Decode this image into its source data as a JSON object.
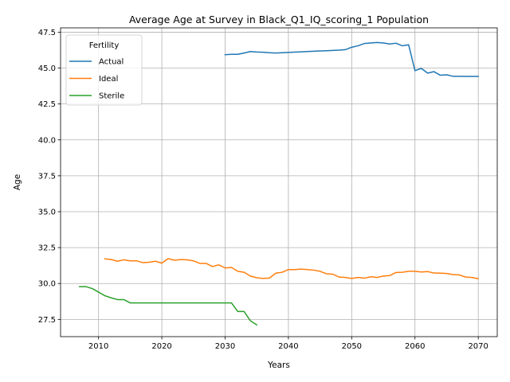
{
  "chart_data": {
    "type": "line",
    "title": "Average Age at Survey in Black_Q1_IQ_scoring_1 Population",
    "xlabel": "Years",
    "ylabel": "Age",
    "xlim": [
      2004,
      2073
    ],
    "ylim": [
      26.3,
      47.8
    ],
    "xticks": [
      2010,
      2020,
      2030,
      2040,
      2050,
      2060,
      2070
    ],
    "yticks": [
      27.5,
      30.0,
      32.5,
      35.0,
      37.5,
      40.0,
      42.5,
      45.0,
      47.5
    ],
    "xtick_labels": [
      "2010",
      "2020",
      "2030",
      "2040",
      "2050",
      "2060",
      "2070"
    ],
    "ytick_labels": [
      "27.5",
      "30.0",
      "32.5",
      "35.0",
      "37.5",
      "40.0",
      "42.5",
      "45.0",
      "47.5"
    ],
    "grid": true,
    "legend": {
      "title": "Fertility",
      "position": "upper-left"
    },
    "series": [
      {
        "name": "Actual",
        "color": "#1f77b4",
        "x": [
          2030,
          2031,
          2032,
          2033,
          2034,
          2035,
          2036,
          2037,
          2038,
          2039,
          2040,
          2041,
          2042,
          2043,
          2044,
          2045,
          2046,
          2047,
          2048,
          2049,
          2050,
          2051,
          2052,
          2053,
          2054,
          2055,
          2056,
          2057,
          2058,
          2059,
          2060,
          2061,
          2062,
          2063,
          2064,
          2065,
          2066,
          2067,
          2068,
          2069,
          2070
        ],
        "y": [
          45.93,
          45.96,
          45.96,
          46.05,
          46.15,
          46.12,
          46.1,
          46.07,
          46.05,
          46.07,
          46.09,
          46.11,
          46.13,
          46.15,
          46.17,
          46.19,
          46.21,
          46.23,
          46.25,
          46.28,
          46.45,
          46.55,
          46.71,
          46.75,
          46.78,
          46.75,
          46.68,
          46.73,
          46.55,
          46.62,
          44.82,
          44.98,
          44.65,
          44.75,
          44.5,
          44.53,
          44.43,
          44.43,
          44.42,
          44.42,
          44.42
        ]
      },
      {
        "name": "Ideal",
        "color": "#ff7f0e",
        "x": [
          2011,
          2012,
          2013,
          2014,
          2015,
          2016,
          2017,
          2018,
          2019,
          2020,
          2021,
          2022,
          2023,
          2024,
          2025,
          2026,
          2027,
          2028,
          2029,
          2030,
          2031,
          2032,
          2033,
          2034,
          2035,
          2036,
          2037,
          2038,
          2039,
          2040,
          2041,
          2042,
          2043,
          2044,
          2045,
          2046,
          2047,
          2048,
          2049,
          2050,
          2051,
          2052,
          2053,
          2054,
          2055,
          2056,
          2057,
          2058,
          2059,
          2060,
          2061,
          2062,
          2063,
          2064,
          2065,
          2066,
          2067,
          2068,
          2069,
          2070
        ],
        "y": [
          31.72,
          31.67,
          31.55,
          31.65,
          31.58,
          31.58,
          31.45,
          31.48,
          31.55,
          31.42,
          31.73,
          31.62,
          31.67,
          31.65,
          31.58,
          31.4,
          31.4,
          31.18,
          31.3,
          31.08,
          31.12,
          30.85,
          30.78,
          30.52,
          30.4,
          30.35,
          30.38,
          30.72,
          30.78,
          30.97,
          30.97,
          31.0,
          30.97,
          30.93,
          30.85,
          30.68,
          30.65,
          30.45,
          30.42,
          30.35,
          30.42,
          30.37,
          30.47,
          30.42,
          30.52,
          30.55,
          30.77,
          30.78,
          30.85,
          30.85,
          30.8,
          30.83,
          30.73,
          30.72,
          30.7,
          30.62,
          30.6,
          30.45,
          30.42,
          30.33
        ]
      },
      {
        "name": "Sterile",
        "color": "#2ca02c",
        "x": [
          2007,
          2008,
          2009,
          2010,
          2011,
          2012,
          2013,
          2014,
          2015,
          2016,
          2017,
          2018,
          2019,
          2020,
          2021,
          2022,
          2023,
          2024,
          2025,
          2026,
          2027,
          2028,
          2029,
          2030,
          2031,
          2032,
          2033,
          2034,
          2035
        ],
        "y": [
          29.78,
          29.78,
          29.65,
          29.4,
          29.15,
          29.0,
          28.88,
          28.88,
          28.65,
          28.65,
          28.65,
          28.65,
          28.65,
          28.65,
          28.65,
          28.65,
          28.65,
          28.65,
          28.65,
          28.65,
          28.65,
          28.65,
          28.65,
          28.65,
          28.65,
          28.05,
          28.05,
          27.4,
          27.12
        ]
      }
    ]
  }
}
